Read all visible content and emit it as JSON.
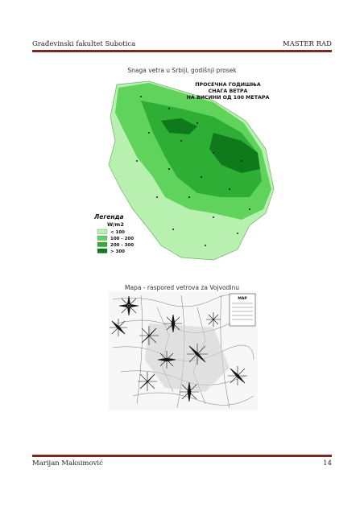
{
  "header": {
    "left": "Građevinski fakultet Subotica",
    "right": "MASTER RAD"
  },
  "figure1": {
    "caption": "Snaga vetra u Srbiji, godišnji prosek",
    "title_lines": [
      "ПРОСЕЧНА ГОДИШЊА",
      "СНАГА ВЕТРА",
      "НА ВИСИНИ ОД 100 МЕТАРА"
    ],
    "legend_title": "Легенда",
    "legend_unit": "W/m2",
    "legend_items": [
      {
        "label": "< 100",
        "color": "#b8f0b0"
      },
      {
        "label": "100 - 200",
        "color": "#5fd35c"
      },
      {
        "label": "200 - 300",
        "color": "#2fae35"
      },
      {
        "label": "> 300",
        "color": "#0e7a1c"
      }
    ]
  },
  "figure2": {
    "caption": "Mapa - raspored vetrova za Vojvodinu",
    "box_title": "MAP"
  },
  "footer": {
    "left": "Marijan Maksimović",
    "right": "14"
  }
}
